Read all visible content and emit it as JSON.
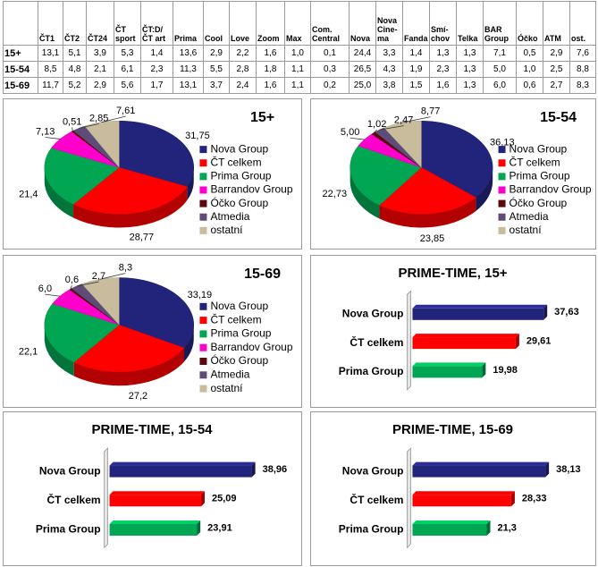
{
  "table": {
    "columns": [
      "ČT1",
      "ČT2",
      "ČT24",
      "ČT\nsport",
      "ČT:D/\nČT art",
      "Prima",
      "Cool",
      "Love",
      "Zoom",
      "Max",
      "Com.\nCentral",
      "Nova",
      "Nova\nCine-\nma",
      "Fanda",
      "Smí-\nchov",
      "Telka",
      "BAR\nGroup",
      "Óčko",
      "ATM",
      "ost."
    ],
    "rows": [
      {
        "label": "15+",
        "values": [
          "13,1",
          "5,1",
          "3,9",
          "5,3",
          "1,4",
          "13,6",
          "2,9",
          "2,2",
          "1,6",
          "1,0",
          "0,1",
          "24,4",
          "3,3",
          "1,4",
          "1,3",
          "1,3",
          "7,1",
          "0,5",
          "2,9",
          "7,6"
        ]
      },
      {
        "label": "15-54",
        "values": [
          "8,5",
          "4,8",
          "2,1",
          "6,1",
          "2,3",
          "11,3",
          "5,5",
          "2,8",
          "1,8",
          "1,1",
          "0,3",
          "26,5",
          "4,3",
          "1,9",
          "2,3",
          "1,3",
          "5,0",
          "1,0",
          "2,5",
          "8,8"
        ]
      },
      {
        "label": "15-69",
        "values": [
          "11,7",
          "5,2",
          "2,9",
          "5,6",
          "1,7",
          "13,1",
          "3,7",
          "2,4",
          "1,6",
          "1,1",
          "0,2",
          "25,0",
          "3,8",
          "1,5",
          "1,6",
          "1,3",
          "6,0",
          "0,6",
          "2,7",
          "8,3"
        ]
      }
    ]
  },
  "chart_data": [
    {
      "type": "pie",
      "title": "15+",
      "legend": "right",
      "categories": [
        "Nova Group",
        "ČT celkem",
        "Prima Group",
        "Barrandov Group",
        "Óčko Group",
        "Atmedia",
        "ostatní"
      ],
      "values": [
        31.75,
        28.77,
        21.4,
        7.13,
        0.51,
        2.85,
        7.61
      ],
      "value_labels": [
        "31,75",
        "28,77",
        "21,4",
        "7,13",
        "0,51",
        "2,85",
        "7,61"
      ],
      "colors": [
        "#22237a",
        "#ff0000",
        "#00a651",
        "#ff00cc",
        "#5a0a0a",
        "#5f4b7a",
        "#c8bc9c"
      ]
    },
    {
      "type": "pie",
      "title": "15-54",
      "legend": "right",
      "categories": [
        "Nova Group",
        "ČT celkem",
        "Prima Group",
        "Barrandov Group",
        "Óčko Group",
        "Atmedia",
        "ostatní"
      ],
      "values": [
        36.13,
        23.85,
        22.73,
        5.0,
        1.02,
        2.47,
        8.77
      ],
      "value_labels": [
        "36,13",
        "23,85",
        "22,73",
        "5,00",
        "1,02",
        "2,47",
        "8,77"
      ],
      "colors": [
        "#22237a",
        "#ff0000",
        "#00a651",
        "#ff00cc",
        "#5a0a0a",
        "#5f4b7a",
        "#c8bc9c"
      ]
    },
    {
      "type": "pie",
      "title": "15-69",
      "legend": "right",
      "categories": [
        "Nova Group",
        "ČT celkem",
        "Prima Group",
        "Barrandov Group",
        "Óčko Group",
        "Atmedia",
        "ostatní"
      ],
      "values": [
        33.19,
        27.2,
        22.1,
        6.0,
        0.6,
        2.7,
        8.3
      ],
      "value_labels": [
        "33,19",
        "27,2",
        "22,1",
        "6,0",
        "0,6",
        "2,7",
        "8,3"
      ],
      "colors": [
        "#22237a",
        "#ff0000",
        "#00a651",
        "#ff00cc",
        "#5a0a0a",
        "#5f4b7a",
        "#c8bc9c"
      ]
    },
    {
      "type": "bar",
      "orientation": "horizontal",
      "title": "PRIME-TIME, 15+",
      "categories": [
        "Nova Group",
        "ČT celkem",
        "Prima Group"
      ],
      "values": [
        37.63,
        29.61,
        19.98
      ],
      "value_labels": [
        "37,63",
        "29,61",
        "19,98"
      ],
      "colors": [
        "#22237a",
        "#ff0000",
        "#00a651"
      ],
      "xlim": [
        0,
        45
      ]
    },
    {
      "type": "bar",
      "orientation": "horizontal",
      "title": "PRIME-TIME, 15-54",
      "categories": [
        "Nova Group",
        "ČT celkem",
        "Prima Group"
      ],
      "values": [
        38.96,
        25.09,
        23.91
      ],
      "value_labels": [
        "38,96",
        "25,09",
        "23,91"
      ],
      "colors": [
        "#22237a",
        "#ff0000",
        "#00a651"
      ],
      "xlim": [
        0,
        45
      ]
    },
    {
      "type": "bar",
      "orientation": "horizontal",
      "title": "PRIME-TIME, 15-69",
      "categories": [
        "Nova Group",
        "ČT celkem",
        "Prima Group"
      ],
      "values": [
        38.13,
        28.33,
        21.3
      ],
      "value_labels": [
        "38,13",
        "28,33",
        "21,3"
      ],
      "colors": [
        "#22237a",
        "#ff0000",
        "#00a651"
      ],
      "xlim": [
        0,
        45
      ]
    }
  ]
}
